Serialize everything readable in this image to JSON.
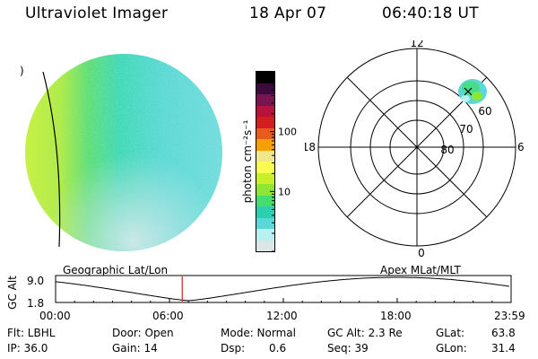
{
  "header": {
    "instrument": "Ultraviolet Imager",
    "date": "18 Apr 07",
    "time": "06:40:18 UT"
  },
  "globe": {
    "edge_mark": ")"
  },
  "colorbar": {
    "label": "photon cm⁻²s⁻¹",
    "ticks": [
      {
        "text": "100",
        "value": 100
      },
      {
        "text": "10",
        "value": 10
      }
    ],
    "colors": [
      "#dde6e6",
      "#b9f0f0",
      "#5ad8d8",
      "#2ad0b0",
      "#46dc6e",
      "#8ce632",
      "#c8f028",
      "#fafa50",
      "#f0e68c",
      "#f5a000",
      "#e85a1e",
      "#d21e1e",
      "#b4143c",
      "#781450",
      "#3c0a3c",
      "#000000"
    ]
  },
  "polar": {
    "mlt_labels": {
      "top": "12",
      "left": "18",
      "right": "6",
      "bottom": "0"
    },
    "lat_labels": [
      "60",
      "70",
      "80"
    ]
  },
  "timeline": {
    "left_label": "Geographic Lat/Lon",
    "right_label": "Apex MLat/MLT",
    "ylabel": "GC Alt",
    "yticks": [
      "9.0",
      "1.8"
    ],
    "xticks": [
      "00:00",
      "06:00",
      "12:00",
      "18:00",
      "23:59"
    ],
    "marker_hours": 6.672
  },
  "info": {
    "filter": "Flt: LBHL",
    "ip": "IP: 36.0",
    "door": "Door: Open",
    "gain": "Gain: 14",
    "mode": "Mode: Normal",
    "dsp_label": "Dsp:",
    "dsp_value": "0.6",
    "gc_alt": "GC Alt: 2.3 Re",
    "seq": "Seq: 39",
    "glat_label": "GLat:",
    "glat_value": "63.8",
    "glon_label": "GLon:",
    "glon_value": "31.4"
  }
}
